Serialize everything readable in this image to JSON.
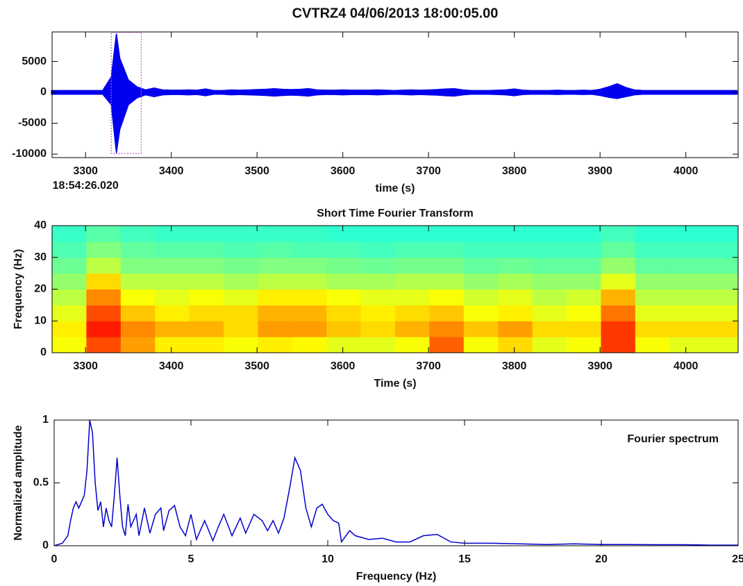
{
  "chart_data": [
    {
      "type": "area",
      "title": "CVTRZ4 04/06/2013  18:00:05.00",
      "xlabel": "time (s)",
      "note": "18:54:26.020",
      "color": "#0000ee",
      "x": [
        3260,
        3270,
        3280,
        3290,
        3300,
        3310,
        3320,
        3330,
        3336,
        3340,
        3350,
        3360,
        3370,
        3380,
        3390,
        3400,
        3410,
        3420,
        3430,
        3440,
        3450,
        3460,
        3470,
        3480,
        3490,
        3500,
        3510,
        3520,
        3530,
        3540,
        3550,
        3560,
        3570,
        3580,
        3590,
        3600,
        3610,
        3620,
        3630,
        3640,
        3650,
        3660,
        3670,
        3680,
        3690,
        3700,
        3710,
        3720,
        3730,
        3740,
        3750,
        3760,
        3770,
        3780,
        3790,
        3800,
        3810,
        3820,
        3830,
        3840,
        3850,
        3860,
        3870,
        3880,
        3890,
        3900,
        3910,
        3920,
        3930,
        3940,
        3950,
        3960,
        3970,
        3980,
        3990,
        4000,
        4010,
        4020,
        4030,
        4040,
        4050,
        4060
      ],
      "upper": [
        300,
        300,
        300,
        300,
        300,
        300,
        300,
        2500,
        9500,
        5500,
        2000,
        900,
        400,
        700,
        400,
        350,
        350,
        400,
        350,
        550,
        300,
        300,
        400,
        350,
        400,
        450,
        500,
        600,
        500,
        450,
        500,
        600,
        400,
        350,
        350,
        400,
        350,
        350,
        350,
        400,
        350,
        300,
        350,
        400,
        350,
        400,
        450,
        550,
        600,
        400,
        300,
        300,
        300,
        350,
        400,
        550,
        350,
        300,
        300,
        300,
        350,
        300,
        300,
        350,
        300,
        500,
        900,
        1400,
        800,
        400,
        300,
        300,
        300,
        300,
        300,
        300,
        300,
        300,
        300,
        300,
        300,
        300
      ],
      "lower": [
        -300,
        -300,
        -300,
        -300,
        -300,
        -300,
        -300,
        -2000,
        -9800,
        -6000,
        -2000,
        -900,
        -400,
        -700,
        -400,
        -350,
        -350,
        -400,
        -350,
        -550,
        -300,
        -300,
        -400,
        -350,
        -400,
        -450,
        -500,
        -600,
        -500,
        -450,
        -500,
        -600,
        -400,
        -350,
        -350,
        -400,
        -350,
        -350,
        -350,
        -400,
        -350,
        -300,
        -350,
        -400,
        -350,
        -400,
        -450,
        -550,
        -600,
        -400,
        -300,
        -300,
        -300,
        -350,
        -400,
        -550,
        -350,
        -300,
        -300,
        -300,
        -350,
        -300,
        -300,
        -350,
        -300,
        -500,
        -800,
        -1000,
        -700,
        -400,
        -300,
        -300,
        -300,
        -300,
        -300,
        -300,
        -300,
        -300,
        -300,
        -300,
        -300,
        -300
      ],
      "window_x": [
        3330,
        3365
      ],
      "window_y": [
        -9900,
        9700
      ],
      "window_color": "#d050d0",
      "xlim": [
        3261,
        4061
      ],
      "xticks": [
        3300,
        3400,
        3500,
        3600,
        3700,
        3800,
        3900,
        4000
      ],
      "ylim": [
        -10560,
        9780
      ],
      "yticks": [
        -10000,
        -5000,
        0,
        5000
      ]
    },
    {
      "type": "heatmap",
      "title": "Short Time Fourier Transform",
      "xlabel": "Time (s)",
      "ylabel": "Frequency (Hz)",
      "colormap": "jet",
      "clim": [
        0,
        1
      ],
      "x_edges": [
        3261,
        3301,
        3341,
        3381,
        3421,
        3461,
        3501,
        3541,
        3581,
        3621,
        3661,
        3701,
        3741,
        3781,
        3821,
        3861,
        3901,
        3941,
        3981,
        4021,
        4061
      ],
      "y_edges": [
        0,
        5,
        10,
        15,
        20,
        25,
        30,
        35,
        40
      ],
      "z": [
        [
          0.62,
          0.8,
          0.72,
          0.64,
          0.64,
          0.62,
          0.64,
          0.63,
          0.6,
          0.6,
          0.62,
          0.78,
          0.62,
          0.66,
          0.6,
          0.62,
          0.82,
          0.62,
          0.6,
          0.6
        ],
        [
          0.64,
          0.85,
          0.74,
          0.7,
          0.7,
          0.66,
          0.72,
          0.72,
          0.68,
          0.66,
          0.7,
          0.74,
          0.68,
          0.72,
          0.66,
          0.66,
          0.82,
          0.66,
          0.66,
          0.66
        ],
        [
          0.6,
          0.8,
          0.68,
          0.64,
          0.66,
          0.66,
          0.7,
          0.7,
          0.66,
          0.64,
          0.66,
          0.68,
          0.62,
          0.64,
          0.6,
          0.62,
          0.76,
          0.6,
          0.6,
          0.6
        ],
        [
          0.56,
          0.74,
          0.62,
          0.6,
          0.62,
          0.6,
          0.64,
          0.64,
          0.62,
          0.6,
          0.6,
          0.62,
          0.58,
          0.6,
          0.56,
          0.58,
          0.7,
          0.56,
          0.56,
          0.56
        ],
        [
          0.52,
          0.66,
          0.56,
          0.56,
          0.56,
          0.54,
          0.56,
          0.56,
          0.54,
          0.54,
          0.55,
          0.55,
          0.52,
          0.54,
          0.52,
          0.52,
          0.6,
          0.52,
          0.52,
          0.52
        ],
        [
          0.48,
          0.56,
          0.5,
          0.5,
          0.5,
          0.49,
          0.5,
          0.5,
          0.49,
          0.48,
          0.49,
          0.49,
          0.47,
          0.48,
          0.47,
          0.47,
          0.52,
          0.47,
          0.47,
          0.47
        ],
        [
          0.45,
          0.5,
          0.47,
          0.46,
          0.46,
          0.45,
          0.46,
          0.45,
          0.45,
          0.44,
          0.45,
          0.45,
          0.44,
          0.44,
          0.44,
          0.44,
          0.47,
          0.44,
          0.44,
          0.44
        ],
        [
          0.43,
          0.46,
          0.44,
          0.43,
          0.43,
          0.43,
          0.43,
          0.43,
          0.42,
          0.42,
          0.42,
          0.42,
          0.42,
          0.42,
          0.42,
          0.42,
          0.44,
          0.42,
          0.42,
          0.42
        ]
      ],
      "xlim": [
        3261,
        4061
      ],
      "xticks": [
        3300,
        3400,
        3500,
        3600,
        3700,
        3800,
        3900,
        4000
      ],
      "ylim": [
        0,
        40
      ],
      "yticks": [
        0,
        10,
        20,
        30,
        40
      ]
    },
    {
      "type": "line",
      "xlabel": "Frequency (Hz)",
      "ylabel": "Normalized amplitude",
      "legend_text": "Fourier spectrum",
      "color": "#0000cc",
      "x": [
        0,
        0.3,
        0.5,
        0.6,
        0.7,
        0.8,
        0.9,
        1.0,
        1.1,
        1.2,
        1.3,
        1.4,
        1.5,
        1.6,
        1.7,
        1.8,
        1.9,
        2.0,
        2.1,
        2.2,
        2.3,
        2.4,
        2.5,
        2.6,
        2.7,
        2.8,
        3.0,
        3.1,
        3.3,
        3.5,
        3.7,
        3.9,
        4.0,
        4.2,
        4.4,
        4.6,
        4.8,
        5.0,
        5.2,
        5.5,
        5.8,
        6.0,
        6.2,
        6.5,
        6.8,
        7.0,
        7.3,
        7.6,
        7.8,
        8.0,
        8.2,
        8.4,
        8.6,
        8.8,
        9.0,
        9.2,
        9.4,
        9.6,
        9.8,
        10.0,
        10.2,
        10.4,
        10.5,
        10.8,
        11.0,
        11.5,
        12.0,
        12.5,
        13.0,
        13.5,
        14.0,
        14.5,
        15,
        16,
        17,
        18,
        19,
        20,
        21,
        22,
        23,
        24,
        25
      ],
      "values": [
        0,
        0.02,
        0.08,
        0.2,
        0.3,
        0.35,
        0.3,
        0.35,
        0.4,
        0.6,
        1.0,
        0.9,
        0.5,
        0.28,
        0.35,
        0.15,
        0.3,
        0.2,
        0.15,
        0.4,
        0.7,
        0.4,
        0.15,
        0.08,
        0.33,
        0.15,
        0.25,
        0.08,
        0.3,
        0.1,
        0.25,
        0.3,
        0.12,
        0.28,
        0.32,
        0.15,
        0.08,
        0.25,
        0.05,
        0.2,
        0.04,
        0.15,
        0.25,
        0.08,
        0.22,
        0.1,
        0.25,
        0.2,
        0.12,
        0.2,
        0.1,
        0.22,
        0.45,
        0.7,
        0.6,
        0.3,
        0.15,
        0.3,
        0.33,
        0.25,
        0.2,
        0.18,
        0.03,
        0.12,
        0.08,
        0.05,
        0.06,
        0.03,
        0.03,
        0.08,
        0.09,
        0.03,
        0.02,
        0.02,
        0.015,
        0.01,
        0.015,
        0.01,
        0.01,
        0.008,
        0.008,
        0.005,
        0.005
      ],
      "xlim": [
        0,
        25
      ],
      "xticks": [
        0,
        5,
        10,
        15,
        20,
        25
      ],
      "ylim": [
        0,
        1
      ],
      "yticks": [
        0,
        0.5,
        1
      ]
    }
  ]
}
